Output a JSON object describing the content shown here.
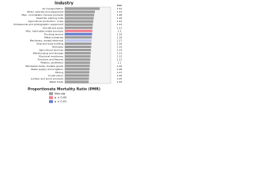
{
  "chart_data": {
    "type": "bar",
    "orientation": "horizontal",
    "title": "Industry",
    "value_header": "PMR",
    "x_label": "Proportionate Mortality Ratio (PMR)",
    "categories": [
      "Air transportation",
      "Motor vehicles and equipment",
      "Misc. nonmetallic mineral products",
      "Sawmills, planing mills",
      "Agricultural production, crops",
      "Professional and photographic equipment",
      "Aircraft and parts",
      "Misc. fabricated metal products",
      "Trucking service",
      "Metal industries",
      "Machinery, except electrical",
      "Ship and boat building",
      "Railroads",
      "Agricultural services",
      "Warehousing and storage",
      "Electrical machinery",
      "Furniture and fixtures",
      "Plastics, synthetics",
      "Wholesale trade, durable goods",
      "Water supply and irrigation",
      "Mining",
      "Construction",
      "Lumber and wood products",
      "Retail trade"
    ],
    "values": [
      1.52,
      1.31,
      1.28,
      1.26,
      1.24,
      1.22,
      1.21,
      1.2,
      1.19,
      1.18,
      1.17,
      1.16,
      1.15,
      1.14,
      1.13,
      1.12,
      1.11,
      1.1,
      1.09,
      1.08,
      1.07,
      1.06,
      1.05,
      1.04
    ],
    "colors": [
      "#9e9e9e",
      "#9e9e9e",
      "#9e9e9e",
      "#9e9e9e",
      "#9e9e9e",
      "#9e9e9e",
      "#9e9e9e",
      "#f08090",
      "#6a7fd0",
      "#9e9e9e",
      "#c0c8f0",
      "#9e9e9e",
      "#9e9e9e",
      "#9e9e9e",
      "#9e9e9e",
      "#9e9e9e",
      "#9e9e9e",
      "#9e9e9e",
      "#9e9e9e",
      "#9e9e9e",
      "#9e9e9e",
      "#9e9e9e",
      "#9e9e9e",
      "#9e9e9e"
    ],
    "xlim": [
      0,
      2
    ],
    "legend": [
      {
        "name": "Non-sig",
        "color": "#9e9e9e"
      },
      {
        "name": "p < 0.05",
        "color": "#f08090"
      },
      {
        "name": "p < 0.01",
        "color": "#6a7fd0"
      }
    ]
  }
}
